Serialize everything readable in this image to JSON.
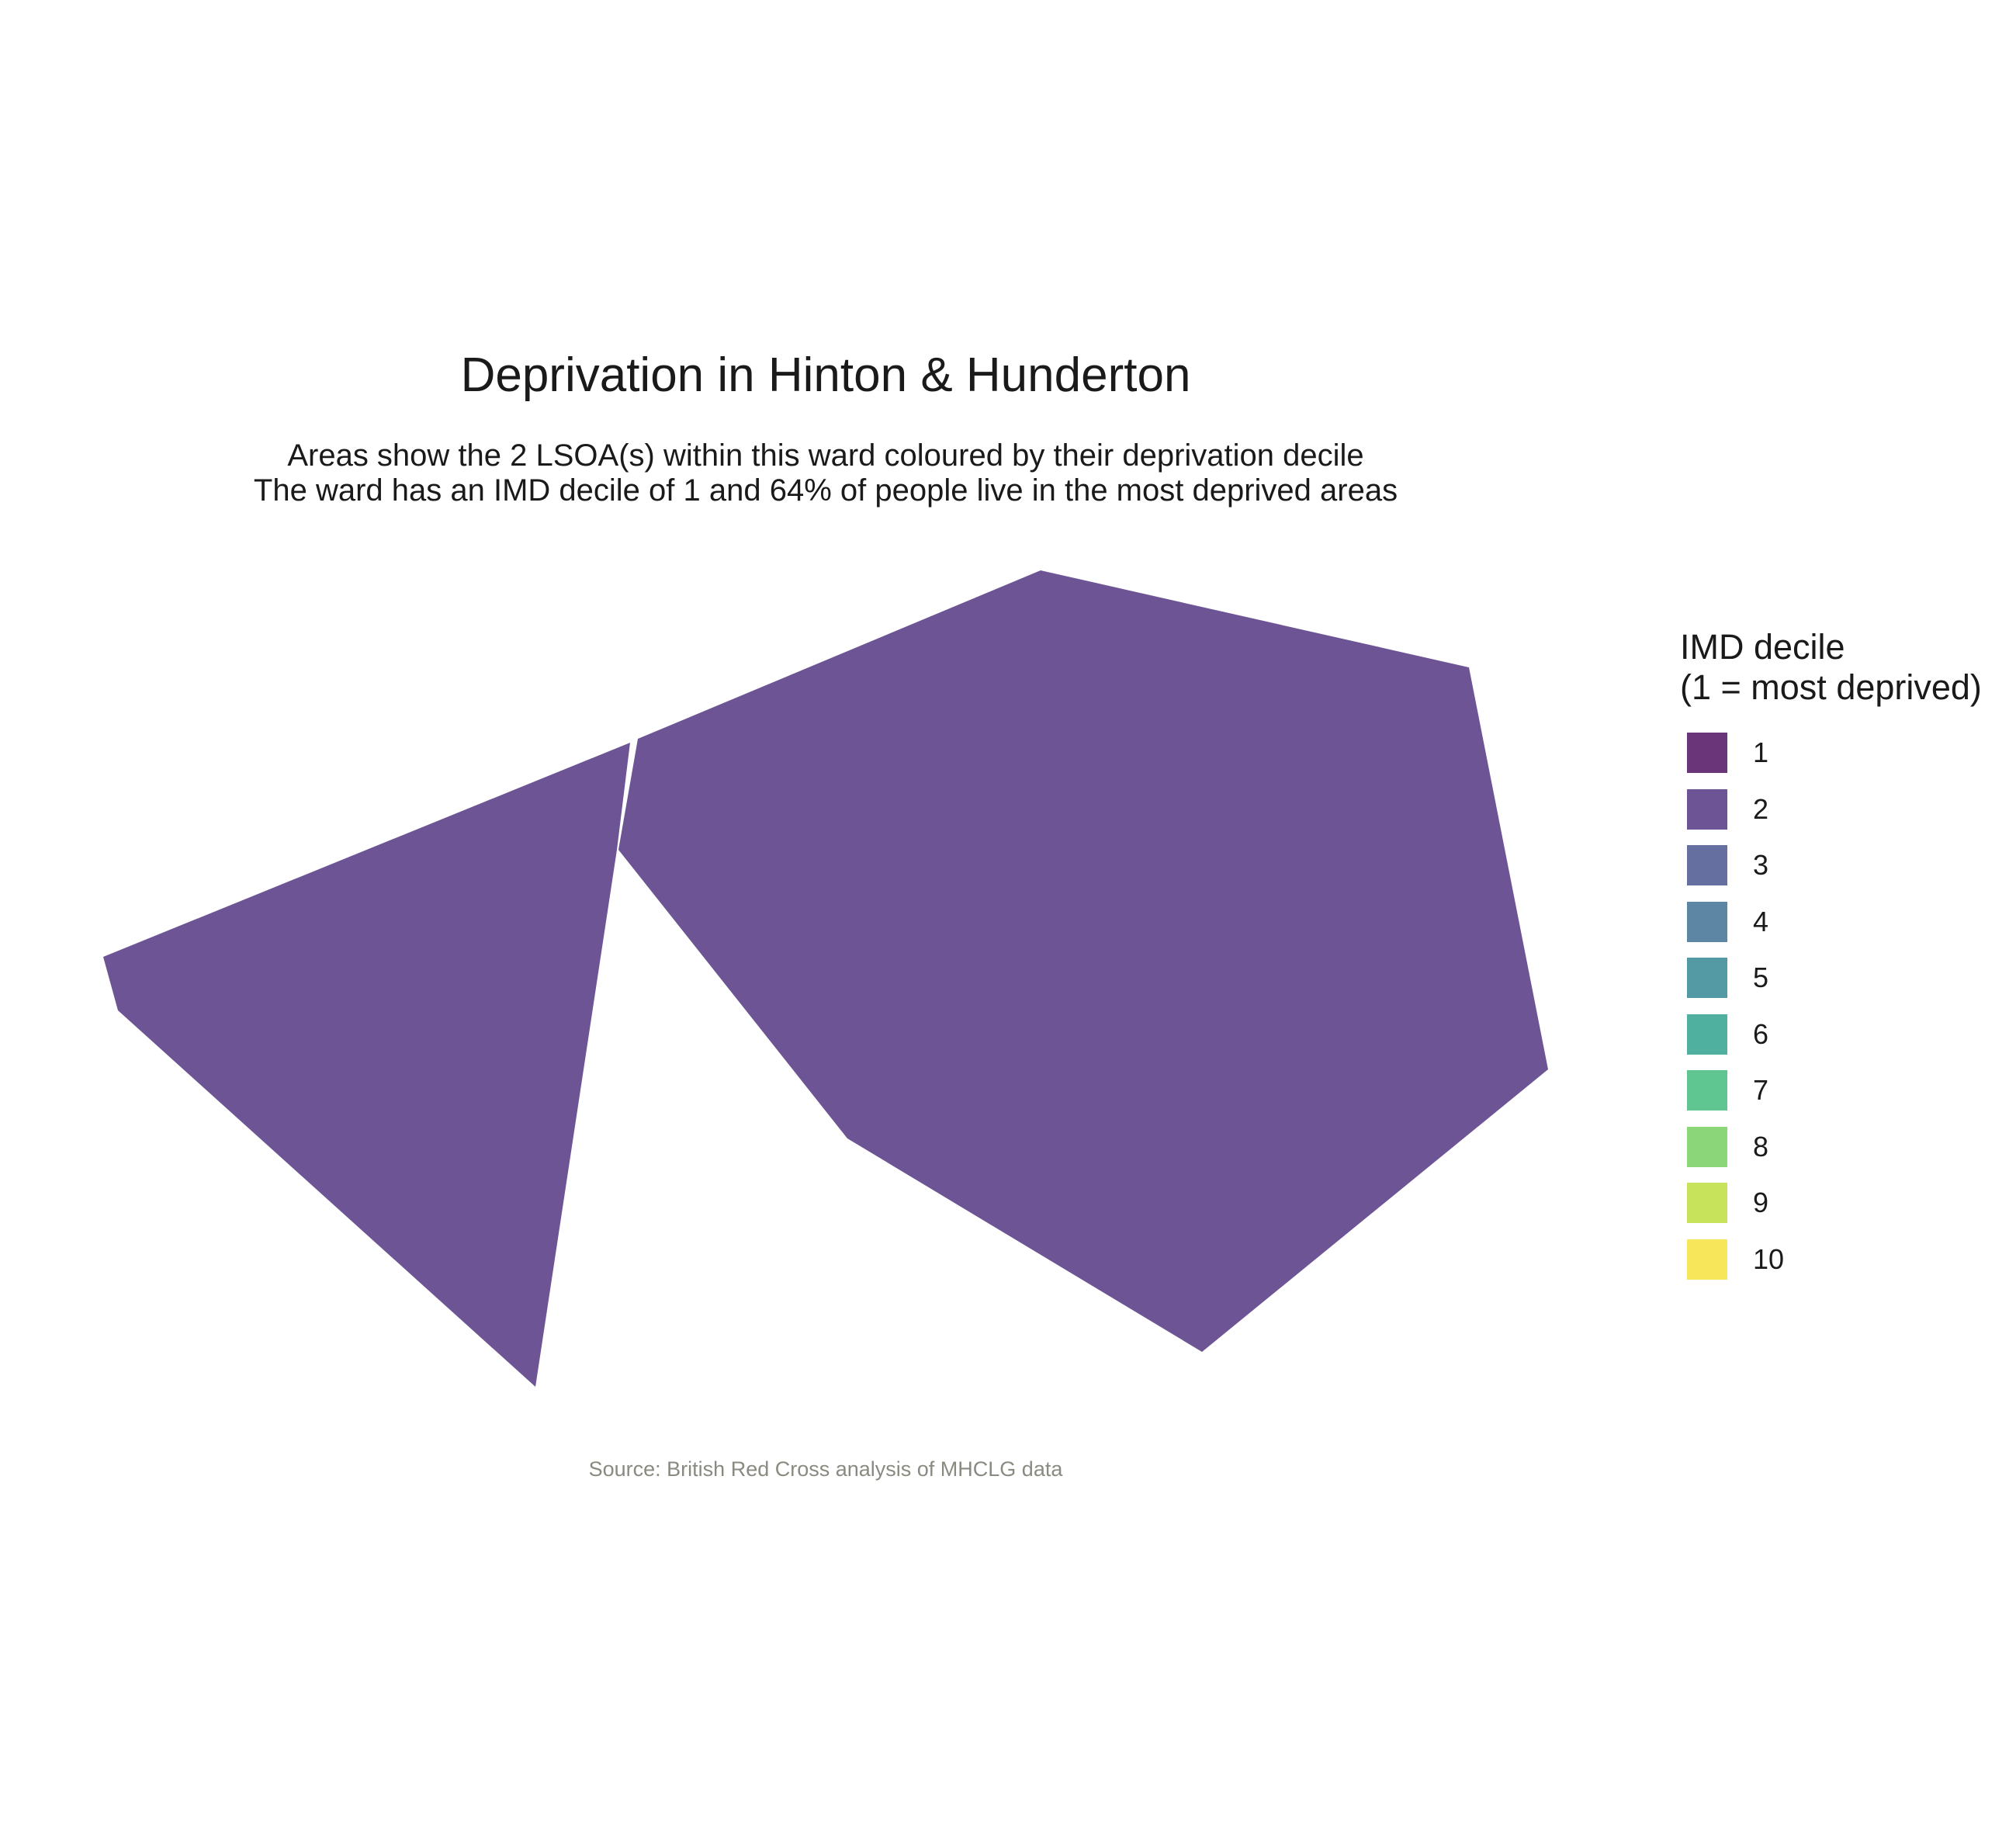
{
  "title": "Deprivation in Hinton & Hunderton",
  "subtitle_line1": "Areas show the 2 LSOA(s) within this ward coloured by their deprivation decile",
  "subtitle_line2": "The ward has an IMD decile of 1 and 64% of people live in the most deprived areas",
  "caption": "Source: British Red Cross analysis of MHCLG data",
  "legend": {
    "title_line1": "IMD decile",
    "title_line2": "(1 = most deprived)",
    "items": [
      {
        "label": "1",
        "color": "#6b3679"
      },
      {
        "label": "2",
        "color": "#6d5494"
      },
      {
        "label": "3",
        "color": "#6570a0"
      },
      {
        "label": "4",
        "color": "#5c86a4"
      },
      {
        "label": "5",
        "color": "#549aa5"
      },
      {
        "label": "6",
        "color": "#4fb0a0"
      },
      {
        "label": "7",
        "color": "#5fc692"
      },
      {
        "label": "8",
        "color": "#8cd67a"
      },
      {
        "label": "9",
        "color": "#c6e35b"
      },
      {
        "label": "10",
        "color": "#f7e65a"
      }
    ]
  },
  "areas": [
    {
      "name": "lsoa-west",
      "decile": 2,
      "color": "#6d5494"
    },
    {
      "name": "lsoa-east",
      "decile": 2,
      "color": "#6d5494"
    }
  ]
}
